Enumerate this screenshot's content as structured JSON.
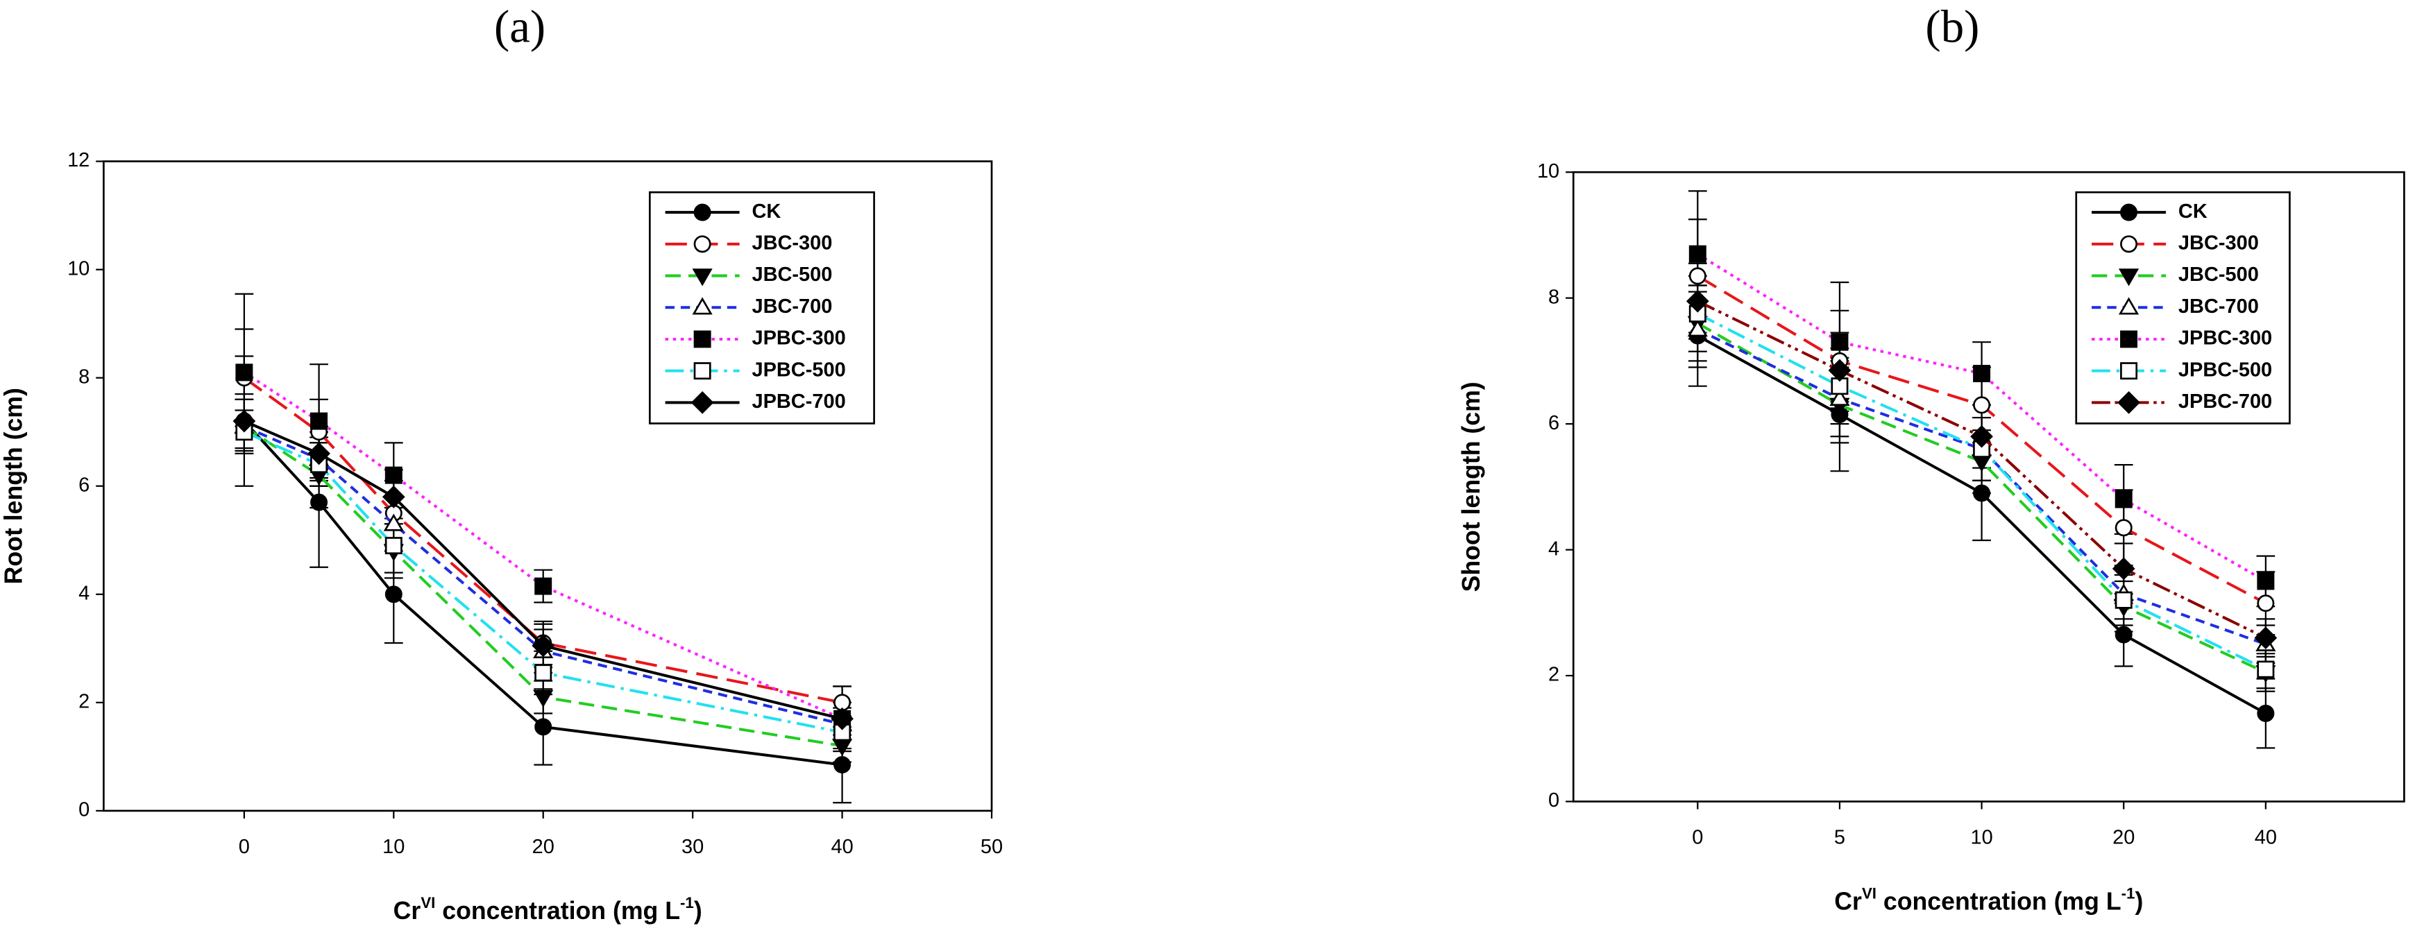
{
  "chart_data": [
    {
      "type": "line",
      "title": "(a)",
      "ylabel": "Root length (cm)",
      "xlabel": [
        "Cr",
        "VI",
        " concentration (mg L",
        "-1",
        ")"
      ],
      "x": [
        0,
        5,
        10,
        20,
        40
      ],
      "xlim": [
        -9.4,
        50
      ],
      "xticks": [
        0,
        10,
        20,
        30,
        40,
        50
      ],
      "ylim": [
        0,
        12
      ],
      "yticks": [
        0,
        2,
        4,
        6,
        8,
        10,
        12
      ],
      "legend": "upper right",
      "series": [
        {
          "name": "CK",
          "color": "#000000",
          "dash": "solid",
          "marker": "circle",
          "filled": true,
          "values": [
            7.2,
            5.7,
            4.0,
            1.55,
            0.85
          ],
          "errors": [
            1.2,
            1.2,
            0.9,
            0.7,
            0.7
          ]
        },
        {
          "name": "JBC-300",
          "color": "#e8161b",
          "dash": "longdash",
          "marker": "circle",
          "filled": false,
          "values": [
            8.0,
            7.0,
            5.5,
            3.1,
            2.0
          ],
          "errors": [
            0.9,
            0.6,
            0.6,
            0.4,
            0.3
          ]
        },
        {
          "name": "JBC-500",
          "color": "#22cc22",
          "dash": "dash",
          "marker": "triangle-down",
          "filled": true,
          "values": [
            7.1,
            6.2,
            4.8,
            2.1,
            1.2
          ],
          "errors": [
            0.5,
            0.6,
            0.5,
            0.3,
            0.3
          ]
        },
        {
          "name": "JBC-700",
          "color": "#1f2ee0",
          "dash": "shortdash",
          "marker": "triangle-up",
          "filled": false,
          "values": [
            7.1,
            6.5,
            5.3,
            2.95,
            1.6
          ],
          "errors": [
            0.5,
            0.5,
            0.5,
            0.4,
            0.3
          ]
        },
        {
          "name": "JPBC-300",
          "color": "#ff22ff",
          "dash": "dot",
          "marker": "square",
          "filled": true,
          "values": [
            8.1,
            7.2,
            6.2,
            4.15,
            1.7
          ],
          "errors": [
            1.45,
            1.05,
            0.6,
            0.3,
            0.6
          ]
        },
        {
          "name": "JPBC-500",
          "color": "#22e0f0",
          "dash": "dashdot",
          "marker": "square",
          "filled": false,
          "values": [
            7.0,
            6.4,
            4.9,
            2.55,
            1.45
          ],
          "errors": [
            0.4,
            0.4,
            0.5,
            0.4,
            0.3
          ]
        },
        {
          "name": "JPBC-700",
          "color": "#000000",
          "dash": "solid",
          "marker": "diamond",
          "filled": true,
          "values": [
            7.2,
            6.6,
            5.8,
            3.05,
            1.7
          ],
          "errors": [
            0.5,
            0.5,
            0.5,
            0.4,
            0.3
          ]
        }
      ]
    },
    {
      "type": "line",
      "title": "(b)",
      "ylabel": "Shoot length (cm)",
      "xlabel": [
        "Cr",
        "VI",
        " concentration (mg L",
        "-1",
        ")"
      ],
      "categories": [
        "0",
        "5",
        "10",
        "20",
        "40"
      ],
      "ylim": [
        0,
        10
      ],
      "yticks": [
        0,
        2,
        4,
        6,
        8,
        10
      ],
      "legend": "upper right",
      "series": [
        {
          "name": "CK",
          "color": "#000000",
          "dash": "solid",
          "marker": "circle",
          "filled": true,
          "values": [
            7.4,
            6.15,
            4.9,
            2.65,
            1.4
          ],
          "errors": [
            0.8,
            0.9,
            0.75,
            0.5,
            0.55
          ]
        },
        {
          "name": "JBC-300",
          "color": "#e8161b",
          "dash": "longdash",
          "marker": "circle",
          "filled": false,
          "values": [
            8.35,
            7.0,
            6.3,
            4.35,
            3.15
          ],
          "errors": [
            0.9,
            0.8,
            0.6,
            0.6,
            0.5
          ]
        },
        {
          "name": "JBC-500",
          "color": "#22cc22",
          "dash": "dash",
          "marker": "triangle-down",
          "filled": true,
          "values": [
            7.6,
            6.3,
            5.4,
            3.1,
            2.05
          ],
          "errors": [
            0.6,
            0.6,
            0.5,
            0.4,
            0.3
          ]
        },
        {
          "name": "JBC-700",
          "color": "#1f2ee0",
          "dash": "shortdash",
          "marker": "triangle-up",
          "filled": false,
          "values": [
            7.5,
            6.4,
            5.6,
            3.3,
            2.5
          ],
          "errors": [
            0.6,
            0.6,
            0.5,
            0.4,
            0.3
          ]
        },
        {
          "name": "JPBC-300",
          "color": "#ff22ff",
          "dash": "dot",
          "marker": "square",
          "filled": true,
          "values": [
            8.7,
            7.3,
            6.8,
            4.8,
            3.5
          ],
          "errors": [
            1.0,
            0.95,
            0.5,
            0.55,
            0.4
          ]
        },
        {
          "name": "JPBC-500",
          "color": "#22e0f0",
          "dash": "dashdot",
          "marker": "square",
          "filled": false,
          "values": [
            7.75,
            6.6,
            5.6,
            3.2,
            2.1
          ],
          "errors": [
            0.6,
            0.6,
            0.5,
            0.4,
            0.3
          ]
        },
        {
          "name": "JPBC-700",
          "color": "#8b0000",
          "dash": "dashdotdot",
          "marker": "diamond",
          "filled": true,
          "values": [
            7.95,
            6.85,
            5.8,
            3.7,
            2.6
          ],
          "errors": [
            0.6,
            0.6,
            0.5,
            0.4,
            0.3
          ]
        }
      ]
    }
  ]
}
